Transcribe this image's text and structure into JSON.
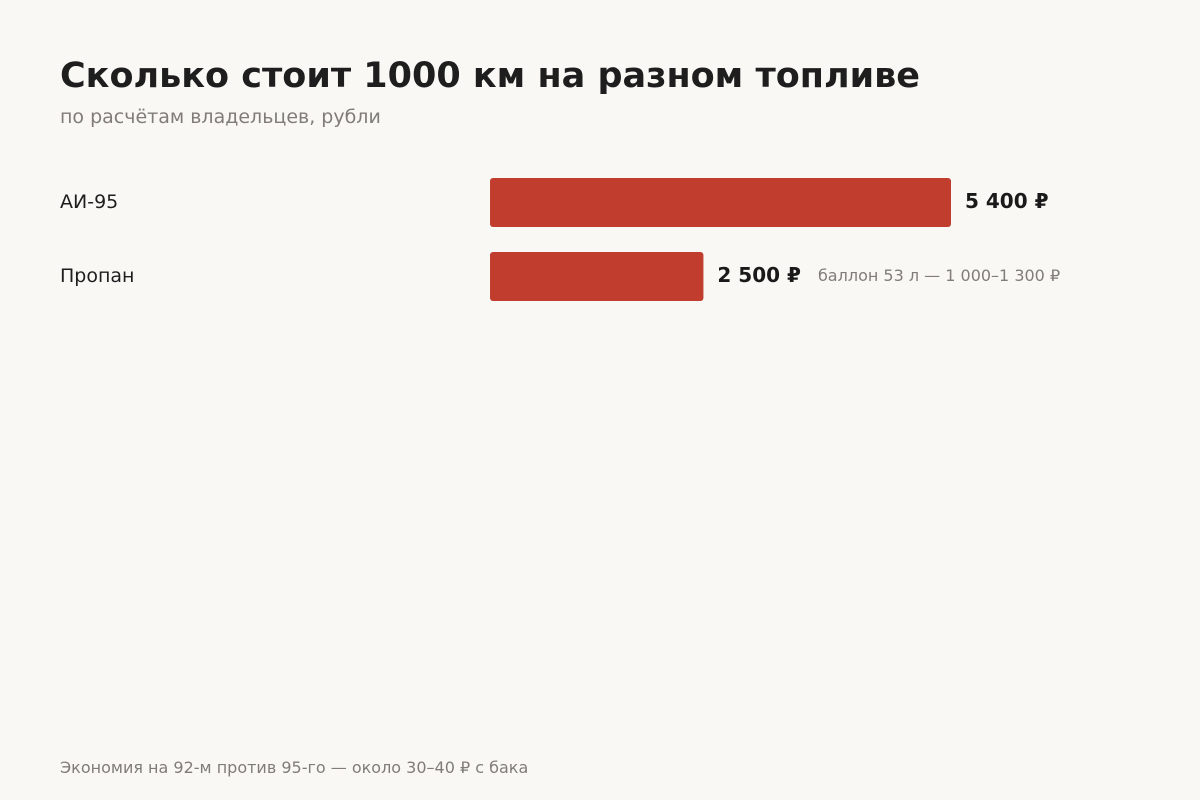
{
  "title": "Сколько стоит 1000 км на разном топливе",
  "subtitle": "по расчётам владельцев, рубли",
  "footnote": "Экономия на 92-м против 95-го — около 30–40 ₽ с бака",
  "colors": {
    "bar": "#c13d2e",
    "category_label": "#1e1e1e",
    "value_label": "#1a1a1a",
    "note_label": "#807d79",
    "background": "#f9f8f4"
  },
  "chart_data": {
    "type": "bar",
    "orientation": "horizontal",
    "categories": [
      "АИ-95",
      "Пропан"
    ],
    "values": [
      5400,
      2500
    ],
    "value_labels": [
      "5 400 ₽",
      "2 500 ₽"
    ],
    "annotations": [
      "",
      "баллон 53 л — 1 000–1 300 ₽"
    ],
    "title": "Сколько стоит 1000 км на разном топливе",
    "xlabel": "",
    "ylabel": "",
    "grid": false
  }
}
